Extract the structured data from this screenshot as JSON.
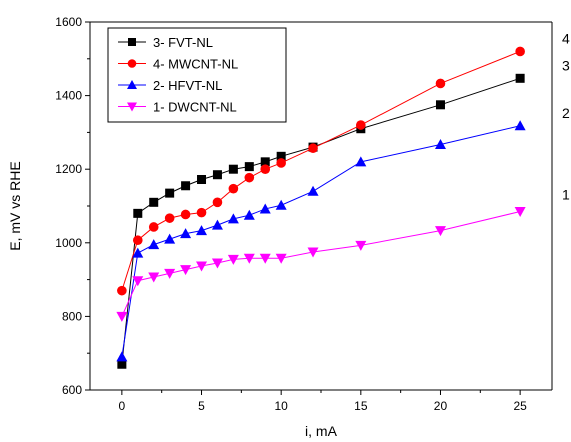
{
  "chart_data": {
    "type": "line",
    "xlabel": "i, mA",
    "ylabel": "E, mV vs RHE",
    "xlim": [
      -2,
      27
    ],
    "ylim": [
      600,
      1600
    ],
    "xticks": [
      0,
      5,
      10,
      15,
      20,
      25
    ],
    "yticks": [
      600,
      800,
      1000,
      1200,
      1400,
      1600
    ],
    "grid": false,
    "legend_position": "top-left",
    "series": [
      {
        "name": "3- FVT-NL",
        "end_label": "3",
        "color": "#000000",
        "marker": "square",
        "x": [
          0,
          1,
          2,
          3,
          4,
          5,
          6,
          7,
          8,
          9,
          10,
          12,
          15,
          20,
          25
        ],
        "y": [
          670,
          1080,
          1110,
          1135,
          1155,
          1172,
          1185,
          1200,
          1207,
          1220,
          1235,
          1260,
          1310,
          1375,
          1447
        ]
      },
      {
        "name": "4- MWCNT-NL",
        "end_label": "4",
        "color": "#ff0000",
        "marker": "circle",
        "x": [
          0,
          1,
          2,
          3,
          4,
          5,
          6,
          7,
          8,
          9,
          10,
          12,
          15,
          20,
          25
        ],
        "y": [
          870,
          1007,
          1043,
          1067,
          1077,
          1082,
          1110,
          1147,
          1177,
          1200,
          1217,
          1257,
          1320,
          1433,
          1520
        ]
      },
      {
        "name": "2- HFVT-NL",
        "end_label": "2",
        "color": "#0000ff",
        "marker": "triangle-up",
        "x": [
          0,
          1,
          2,
          3,
          4,
          5,
          6,
          7,
          8,
          9,
          10,
          12,
          15,
          20,
          25
        ],
        "y": [
          690,
          972,
          995,
          1010,
          1025,
          1033,
          1048,
          1065,
          1075,
          1092,
          1102,
          1140,
          1220,
          1267,
          1318
        ]
      },
      {
        "name": "1- DWCNT-NL",
        "end_label": "1",
        "color": "#ff00ff",
        "marker": "triangle-down",
        "x": [
          0,
          1,
          2,
          3,
          4,
          5,
          6,
          7,
          8,
          9,
          10,
          12,
          15,
          20,
          25
        ],
        "y": [
          800,
          897,
          907,
          917,
          927,
          937,
          945,
          955,
          958,
          958,
          958,
          975,
          993,
          1033,
          1085
        ]
      }
    ]
  }
}
